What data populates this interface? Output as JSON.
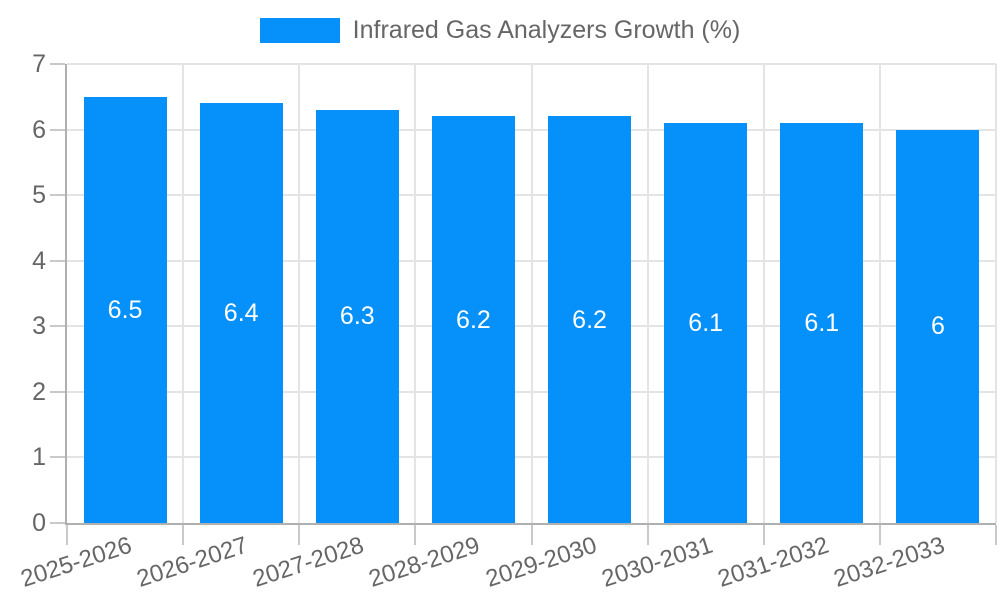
{
  "chart_data": {
    "type": "bar",
    "title": "Infrared Gas Analyzers Growth (%)",
    "categories": [
      "2025-2026",
      "2026-2027",
      "2027-2028",
      "2028-2029",
      "2029-2030",
      "2030-2031",
      "2031-2032",
      "2032-2033"
    ],
    "values": [
      6.5,
      6.4,
      6.3,
      6.2,
      6.2,
      6.1,
      6.1,
      6
    ],
    "value_labels": [
      "6.5",
      "6.4",
      "6.3",
      "6.2",
      "6.2",
      "6.1",
      "6.1",
      "6"
    ],
    "xlabel": "",
    "ylabel": "",
    "ylim": [
      0,
      7
    ],
    "yticks": [
      0,
      1,
      2,
      3,
      4,
      5,
      6,
      7
    ],
    "grid": true,
    "legend_position": "top",
    "x_label_rotation_deg": -18,
    "colors": {
      "bar": "#0590FA",
      "axis_label": "#666666",
      "legend_text": "#666666",
      "gridline": "#e4e4e4",
      "axis_line": "#b0b0b0",
      "tick": "#c9c9c9",
      "value_label": "#ffffff",
      "background": "#ffffff"
    }
  }
}
